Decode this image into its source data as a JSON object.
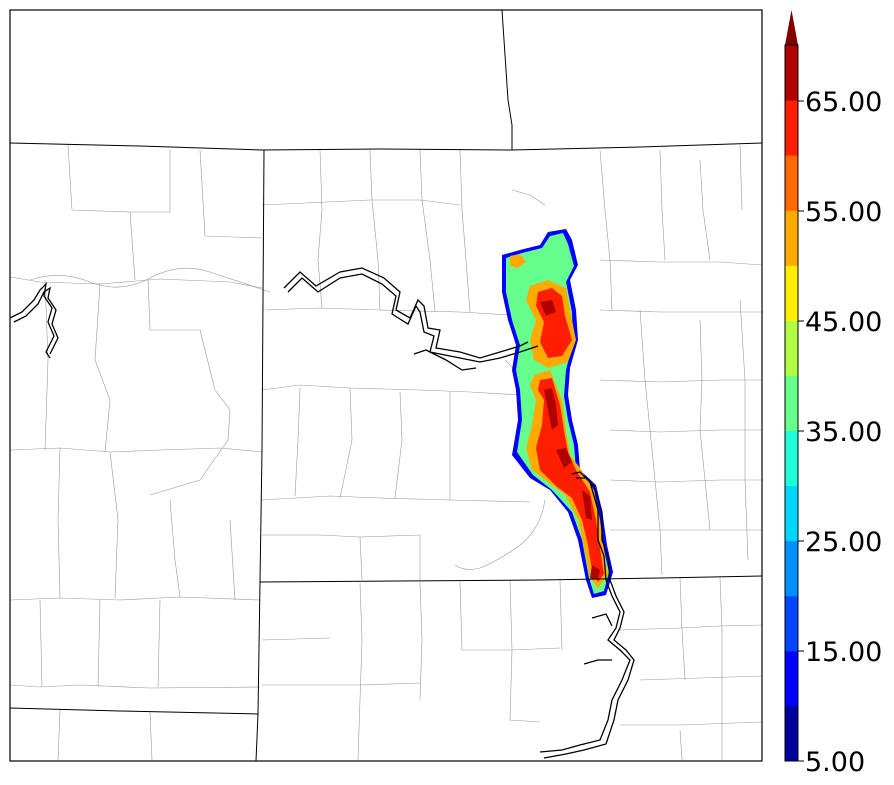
{
  "colorbar": {
    "tick_labels": [
      "5.00",
      "15.00",
      "25.00",
      "35.00",
      "45.00",
      "55.00",
      "65.00"
    ],
    "extend": "max",
    "levels": [
      5,
      10,
      15,
      20,
      25,
      30,
      35,
      40,
      45,
      50,
      55,
      60,
      65,
      70
    ],
    "colors": [
      "#00009c",
      "#0000ff",
      "#0045ff",
      "#008fff",
      "#00d7ff",
      "#1cffd9",
      "#66ff8c",
      "#b0ff44",
      "#fff000",
      "#ffaa00",
      "#ff6a00",
      "#ff1e00",
      "#b00000"
    ],
    "extend_color": "#800000"
  },
  "map": {
    "field_colors": {
      "outline": "#0000ff",
      "low": "#66ff8c",
      "mid": "#ffaa00",
      "high": "#ff1e00",
      "peak": "#b00000"
    },
    "line_colors": {
      "county": "#9a9a9a",
      "state": "#000000",
      "river": "#000000"
    }
  }
}
